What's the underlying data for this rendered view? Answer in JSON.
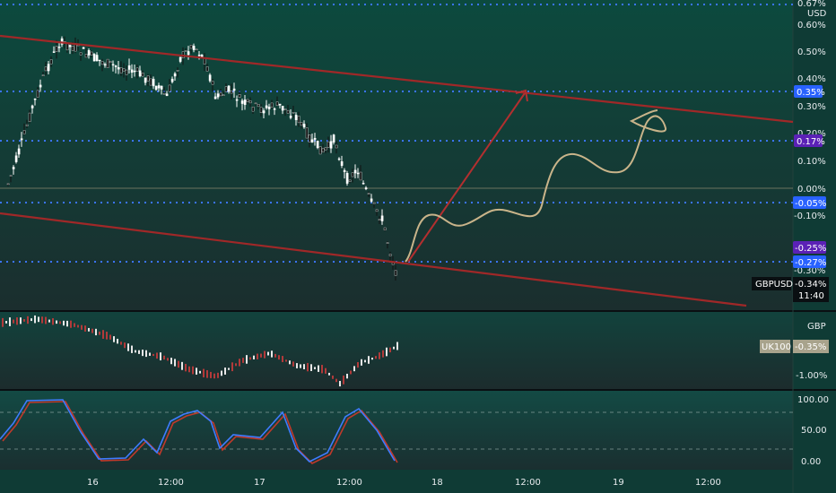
{
  "symbol": "GBPUSD",
  "time_label": "11:40",
  "currency_label": "USD",
  "price_axis_labels": [
    "0.67%",
    "0.60%",
    "0.50%",
    "0.40%",
    "0.30%",
    "0.20%",
    "0.10%",
    "0.00%",
    "-0.10%",
    "-0.30%",
    "-0.34%"
  ],
  "line_tags": [
    {
      "text": "0.35%",
      "color": "#2962ff"
    },
    {
      "text": "0.17%",
      "color": "#5b21b6"
    },
    {
      "text": "-0.05%",
      "color": "#2962ff"
    },
    {
      "text": "-0.25%",
      "color": "#5b21b6"
    },
    {
      "text": "-0.27%",
      "color": "#2962ff"
    }
  ],
  "comparison": {
    "unit_label": "GBP",
    "symbol": "UK100",
    "value": "-0.35%",
    "axis_labels": [
      "-1.00%"
    ]
  },
  "oscillator": {
    "axis_labels": [
      "100.00",
      "50.00",
      "0.00"
    ]
  },
  "time_axis_labels": [
    "16",
    "12:00",
    "17",
    "12:00",
    "18",
    "12:00",
    "19",
    "12:00"
  ],
  "colors": {
    "background": "#0f3b35",
    "up_candle": "#ffffff",
    "down_candle": "#e7e7e7",
    "channel": "#a02828",
    "level_lines": "#3b74ff",
    "projection": "#c9b48a",
    "osc_k": "#3f7cff",
    "osc_d": "#c0392b"
  }
}
